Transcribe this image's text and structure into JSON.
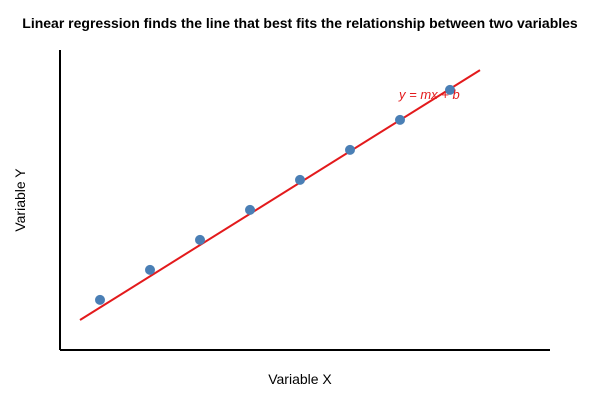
{
  "chart_data": {
    "type": "scatter",
    "title": "Linear regression finds the line that best fits the relationship between two variables",
    "xlabel": "Variable X",
    "ylabel": "Variable Y",
    "xlim": [
      0,
      10
    ],
    "ylim": [
      0,
      10
    ],
    "grid": false,
    "series": [
      {
        "x": [
          0.8,
          1.8,
          2.8,
          3.8,
          4.8,
          5.8,
          6.8,
          7.8
        ],
        "y": [
          1.67,
          2.67,
          3.67,
          4.67,
          5.67,
          6.67,
          7.67,
          8.67
        ],
        "color": "#4a7fb5"
      }
    ],
    "regression_line": {
      "x": [
        0.4,
        8.4
      ],
      "y": [
        1.0,
        9.33
      ],
      "color": "#e31a1c"
    },
    "annotations": [
      {
        "text": "y = mx + b",
        "color": "#e31a1c"
      }
    ]
  }
}
